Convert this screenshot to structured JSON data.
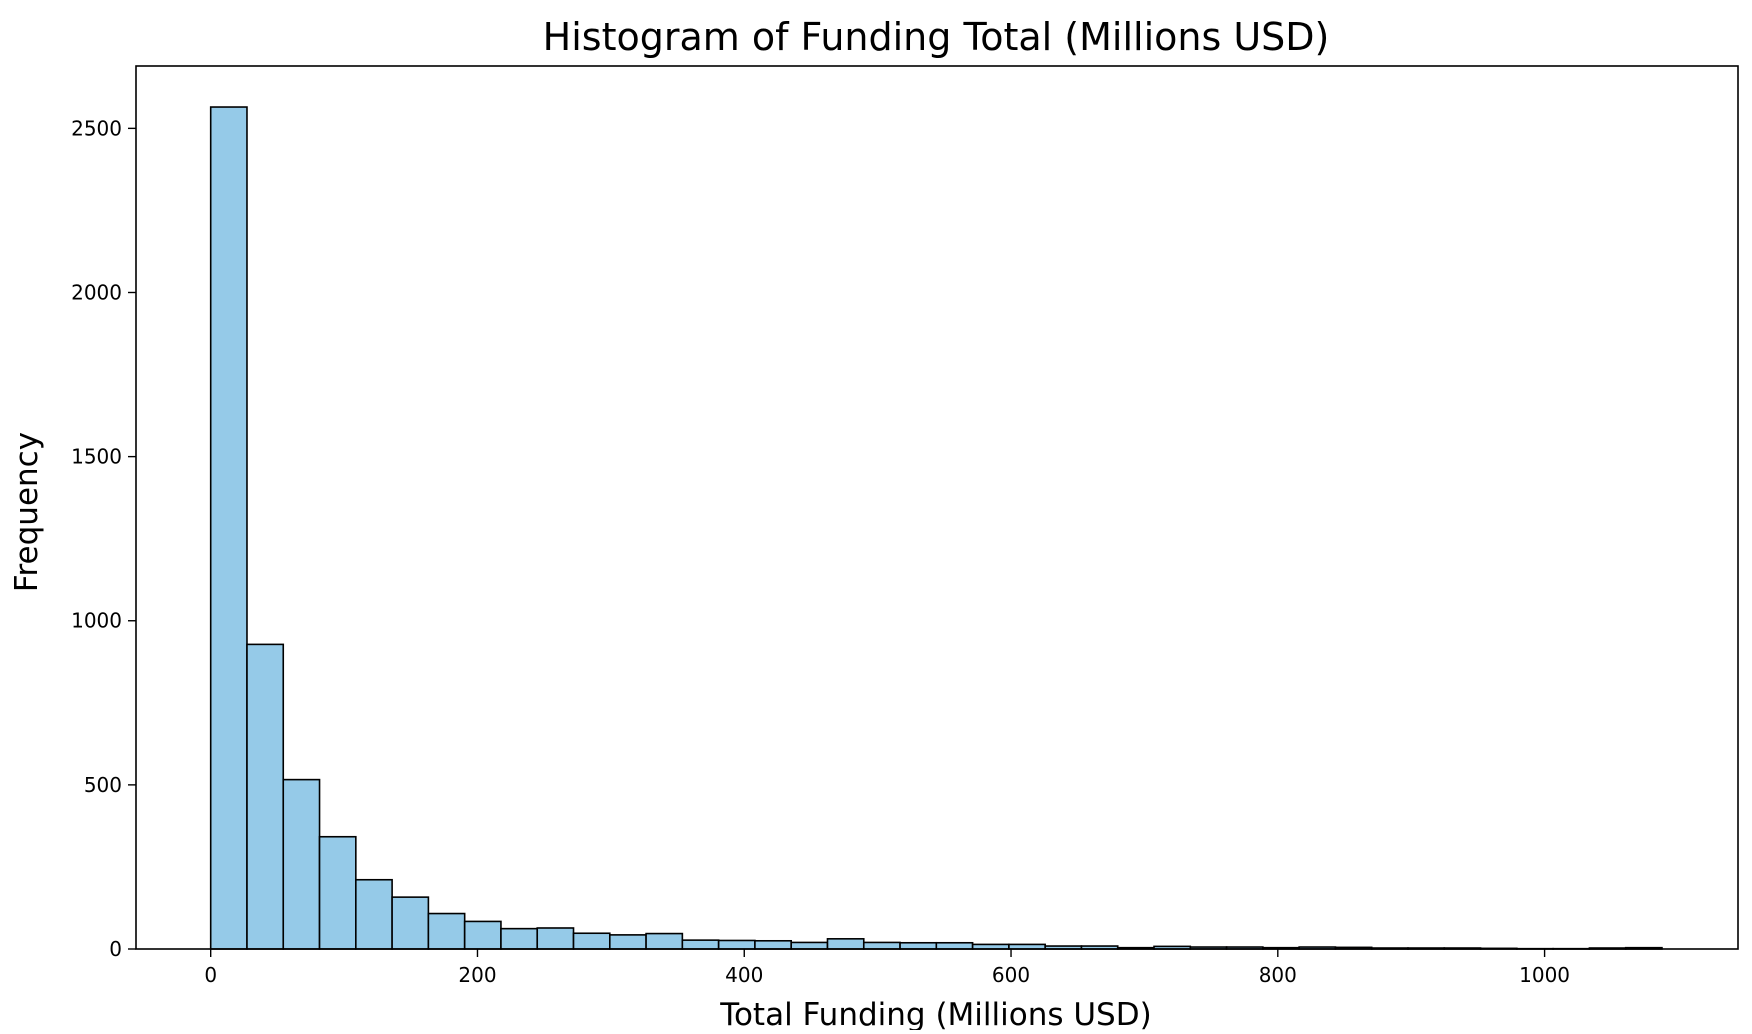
{
  "chart_data": {
    "type": "bar",
    "title": "Histogram of Funding Total (Millions USD)",
    "xlabel": "Total Funding (Millions USD)",
    "ylabel": "Frequency",
    "xlim": [
      -56,
      1145
    ],
    "ylim": [
      0,
      2690
    ],
    "xticks": [
      0,
      200,
      400,
      600,
      800,
      1000
    ],
    "yticks": [
      0,
      500,
      1000,
      1500,
      2000,
      2500
    ],
    "grid": false,
    "bar_color": "#95cae8",
    "edge_color": "#000000",
    "bin_start": 0,
    "bin_width": 27.2,
    "values": [
      2565,
      928,
      516,
      342,
      211,
      158,
      108,
      84,
      62,
      64,
      48,
      43,
      47,
      27,
      26,
      25,
      20,
      31,
      20,
      19,
      19,
      14,
      14,
      9,
      9,
      4,
      8,
      6,
      6,
      4,
      6,
      5,
      3,
      3,
      3,
      2,
      1,
      1,
      3,
      4
    ]
  }
}
